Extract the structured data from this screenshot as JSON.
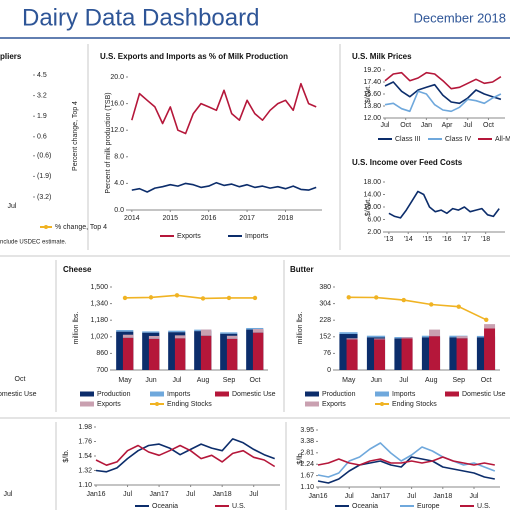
{
  "header": {
    "title": "Dairy Data Dashboard",
    "date": "December 2018"
  },
  "chart_data": [
    {
      "type": "fragment",
      "title": "pliers",
      "ylabel": "Percent change, Top 4",
      "ylim": [
        -3.2,
        4.5
      ],
      "yticks": [
        4.5,
        3.2,
        1.9,
        0.6,
        {
          "value": -0.6,
          "label": "(0.6)"
        },
        {
          "value": -1.9,
          "label": "(1.9)"
        },
        {
          "value": -3.2,
          "label": "(3.2)"
        }
      ],
      "xlabels": [
        "Jul"
      ],
      "legend": "% change, Top 4",
      "note": "nclude USDEC estimate."
    },
    {
      "type": "line",
      "title": "U.S. Exports and Imports as % of Milk Production",
      "ylabel": "Percent of milk production (TSB)",
      "x": [
        2014.0,
        2014.2,
        2014.4,
        2014.6,
        2014.8,
        2015.0,
        2015.2,
        2015.4,
        2015.6,
        2015.8,
        2016.0,
        2016.2,
        2016.4,
        2016.6,
        2016.8,
        2017.0,
        2017.2,
        2017.4,
        2017.6,
        2017.8,
        2018.0,
        2018.2,
        2018.4,
        2018.6,
        2018.8
      ],
      "xlim": [
        2013.9,
        2018.95
      ],
      "xticks": [
        2014,
        2015,
        2016,
        2017,
        2018
      ],
      "ylim": [
        0,
        20
      ],
      "yticks": [
        {
          "value": 0,
          "label": "0.0"
        },
        {
          "value": 4,
          "label": "4.0"
        },
        {
          "value": 8,
          "label": "8.0"
        },
        {
          "value": 12,
          "label": "12.0"
        },
        {
          "value": 16,
          "label": "16.0"
        },
        {
          "value": 20,
          "label": "20.0"
        }
      ],
      "series": [
        {
          "name": "Exports",
          "color": "#b5173a",
          "values": [
            13.5,
            17.5,
            16.5,
            15.5,
            13,
            15.5,
            12,
            11.5,
            14.5,
            16,
            15.5,
            15,
            18,
            14.5,
            13.5,
            16.5,
            14.5,
            13.5,
            15,
            16,
            16.5,
            15,
            19,
            16,
            15.5
          ]
        },
        {
          "name": "Imports",
          "color": "#0c2d6b",
          "values": [
            3,
            3.2,
            2.7,
            3.3,
            3.5,
            3.8,
            3.6,
            4,
            3.8,
            3.4,
            3.6,
            4.1,
            3.7,
            3.9,
            3.5,
            3.8,
            3.4,
            3.6,
            3.3,
            3.5,
            3.2,
            3.6,
            3.1,
            3.0,
            3.4
          ]
        }
      ]
    },
    {
      "type": "line",
      "title": "U.S. Milk Prices",
      "ylabel": "$/cwt.",
      "x": [
        0,
        2,
        4,
        6,
        8,
        10,
        12,
        14,
        16,
        18,
        20,
        22,
        24,
        26,
        28
      ],
      "xlim": [
        0,
        29
      ],
      "xticks": [
        {
          "value": 0,
          "label": "Jul"
        },
        {
          "value": 5,
          "label": "Oct"
        },
        {
          "value": 10,
          "label": "Jan"
        },
        {
          "value": 15,
          "label": "Apr"
        },
        {
          "value": 20,
          "label": "Jul"
        },
        {
          "value": 25,
          "label": "Oct"
        }
      ],
      "ylim": [
        12,
        19.2
      ],
      "yticks": [
        {
          "value": 12,
          "label": "12.00"
        },
        {
          "value": 13.8,
          "label": "13.80"
        },
        {
          "value": 15.6,
          "label": "15.60"
        },
        {
          "value": 17.4,
          "label": "17.40"
        },
        {
          "value": 19.2,
          "label": "19.20"
        }
      ],
      "series": [
        {
          "name": "Class III",
          "color": "#0c2d6b",
          "values": [
            16.8,
            17.4,
            16.0,
            15.2,
            16.2,
            16.6,
            17.0,
            15.4,
            14.4,
            14.2,
            15.0,
            16.2,
            15.6,
            15.2,
            14.8
          ]
        },
        {
          "name": "Class IV",
          "color": "#6fa8dc",
          "values": [
            14.0,
            14.2,
            13.4,
            13.0,
            16.0,
            15.6,
            14.0,
            13.2,
            13.0,
            13.6,
            14.8,
            14.6,
            14.2,
            15.0,
            15.6
          ]
        },
        {
          "name": "All-Milk",
          "color": "#b5173a",
          "values": [
            17.6,
            18.6,
            18.8,
            17.6,
            18.0,
            18.8,
            18.6,
            17.6,
            16.4,
            16.6,
            17.2,
            17.8,
            17.2,
            17.4,
            18.2
          ]
        }
      ]
    },
    {
      "type": "line",
      "title": "U.S. Income over Feed Costs",
      "ylabel": "$/cwt.",
      "x": [
        2013.0,
        2013.3,
        2013.6,
        2013.9,
        2014.2,
        2014.5,
        2014.8,
        2015.1,
        2015.4,
        2015.7,
        2016.0,
        2016.3,
        2016.6,
        2016.9,
        2017.2,
        2017.5,
        2017.8,
        2018.1,
        2018.4,
        2018.7
      ],
      "xlim": [
        2012.8,
        2019.0
      ],
      "xticks": [
        {
          "value": 2013,
          "label": "'13"
        },
        {
          "value": 2014,
          "label": "'14"
        },
        {
          "value": 2015,
          "label": "'15"
        },
        {
          "value": 2016,
          "label": "'16"
        },
        {
          "value": 2017,
          "label": "'17"
        },
        {
          "value": 2018,
          "label": "'18"
        }
      ],
      "ylim": [
        2,
        18
      ],
      "yticks": [
        {
          "value": 2,
          "label": "2.00"
        },
        {
          "value": 6,
          "label": "6.00"
        },
        {
          "value": 10,
          "label": "10.00"
        },
        {
          "value": 14,
          "label": "14.00"
        },
        {
          "value": 18,
          "label": "18.00"
        }
      ],
      "series": [
        {
          "color": "#0c2d6b",
          "values": [
            8,
            7,
            6.5,
            9,
            12,
            15,
            14,
            10,
            8.5,
            9,
            8,
            9.5,
            9,
            10,
            8.5,
            9,
            9.5,
            7.5,
            7,
            9.5
          ]
        }
      ]
    },
    {
      "type": "fragment",
      "xlabels": [
        "Oct"
      ],
      "legend": "omestic Use"
    },
    {
      "type": "bar",
      "title": "Cheese",
      "ylabel": "million lbs.",
      "categories": [
        "May",
        "Jun",
        "Jul",
        "Aug",
        "Sep",
        "Oct"
      ],
      "ylim": [
        700,
        1500
      ],
      "yticks": [
        700,
        860,
        {
          "value": 1020,
          "label": "1,020"
        },
        {
          "value": 1180,
          "label": "1,180"
        },
        {
          "value": 1340,
          "label": "1,340"
        },
        {
          "value": 1500,
          "label": "1,500"
        }
      ],
      "series": [
        {
          "name": "Production",
          "color": "#0c2d6b",
          "values": [
            1070,
            1060,
            1065,
            1075,
            1050,
            1090
          ]
        },
        {
          "name": "Imports",
          "color": "#6fa8dc",
          "values": [
            15,
            12,
            14,
            14,
            13,
            15
          ]
        },
        {
          "name": "Domestic Use",
          "color": "#b5173a",
          "values": [
            1010,
            1000,
            1005,
            1030,
            1000,
            1060
          ]
        },
        {
          "name": "Exports",
          "color": "#c9a0b0",
          "values": [
            30,
            28,
            29,
            60,
            30,
            35
          ]
        },
        {
          "name": "Ending Stocks",
          "color": "#f0b323",
          "type": "line",
          "values": [
            1395,
            1400,
            1420,
            1390,
            1395,
            1395
          ]
        }
      ]
    },
    {
      "type": "bar",
      "title": "Butter",
      "ylabel": "million lbs.",
      "categories": [
        "May",
        "Jun",
        "Jul",
        "Aug",
        "Sep",
        "Oct"
      ],
      "ylim": [
        0,
        380
      ],
      "yticks": [
        0,
        76,
        152,
        228,
        304,
        380
      ],
      "series": [
        {
          "name": "Production",
          "color": "#0c2d6b",
          "values": [
            165,
            150,
            145,
            150,
            150,
            150
          ]
        },
        {
          "name": "Imports",
          "color": "#6fa8dc",
          "values": [
            8,
            7,
            6,
            7,
            7,
            6
          ]
        },
        {
          "name": "Domestic Use",
          "color": "#b5173a",
          "values": [
            140,
            140,
            145,
            155,
            145,
            190
          ]
        },
        {
          "name": "Exports",
          "color": "#c9a0b0",
          "values": [
            5,
            4,
            5,
            30,
            10,
            20
          ]
        },
        {
          "name": "Ending Stocks",
          "color": "#f0b323",
          "type": "line",
          "values": [
            333,
            332,
            320,
            300,
            290,
            230
          ]
        }
      ]
    },
    {
      "type": "fragment",
      "xlabels": [
        "Jul"
      ]
    },
    {
      "type": "line",
      "ylabel": "$/lb.",
      "x": [
        0,
        2,
        4,
        6,
        8,
        10,
        12,
        14,
        16,
        18,
        20,
        22,
        24,
        26,
        28,
        30,
        32,
        34
      ],
      "xlim": [
        0,
        35
      ],
      "xticks": [
        {
          "value": 0,
          "label": "Jan16"
        },
        {
          "value": 6,
          "label": "Jul"
        },
        {
          "value": 12,
          "label": "Jan17"
        },
        {
          "value": 18,
          "label": "Jul"
        },
        {
          "value": 24,
          "label": "Jan18"
        },
        {
          "value": 30,
          "label": "Jul"
        }
      ],
      "ylim": [
        1.1,
        1.98
      ],
      "yticks": [
        {
          "value": 1.1,
          "label": "1.10"
        },
        1.32,
        1.54,
        1.76,
        1.98
      ],
      "series": [
        {
          "name": "Oceania",
          "color": "#0c2d6b",
          "values": [
            1.32,
            1.3,
            1.36,
            1.5,
            1.62,
            1.7,
            1.72,
            1.66,
            1.56,
            1.64,
            1.72,
            1.66,
            1.62,
            1.8,
            1.74,
            1.64,
            1.56,
            1.5
          ]
        },
        {
          "name": "U.S.",
          "color": "#b5173a",
          "values": [
            1.48,
            1.4,
            1.45,
            1.62,
            1.7,
            1.6,
            1.55,
            1.62,
            1.7,
            1.62,
            1.5,
            1.55,
            1.45,
            1.58,
            1.62,
            1.52,
            1.48,
            1.38
          ]
        }
      ]
    },
    {
      "type": "line",
      "ylabel": "$/lb.",
      "x": [
        0,
        2,
        4,
        6,
        8,
        10,
        12,
        14,
        16,
        18,
        20,
        22,
        24,
        26,
        28,
        30,
        32,
        34
      ],
      "xlim": [
        0,
        35
      ],
      "xticks": [
        {
          "value": 0,
          "label": "Jan16"
        },
        {
          "value": 6,
          "label": "Jul"
        },
        {
          "value": 12,
          "label": "Jan17"
        },
        {
          "value": 18,
          "label": "Jul"
        },
        {
          "value": 24,
          "label": "Jan18"
        },
        {
          "value": 30,
          "label": "Jul"
        }
      ],
      "ylim": [
        1.1,
        3.95
      ],
      "yticks": [
        {
          "value": 1.1,
          "label": "1.10"
        },
        1.67,
        2.24,
        2.81,
        3.38,
        3.95
      ],
      "series": [
        {
          "name": "Oceania",
          "color": "#0c2d6b",
          "values": [
            1.4,
            1.3,
            1.5,
            1.9,
            2.2,
            2.3,
            2.4,
            2.2,
            2.1,
            2.6,
            2.5,
            2.4,
            2.1,
            2.0,
            1.9,
            1.8,
            1.6,
            1.5
          ]
        },
        {
          "name": "Europe",
          "color": "#6fa8dc",
          "values": [
            1.7,
            1.6,
            1.8,
            2.4,
            2.6,
            3.0,
            3.3,
            2.8,
            2.4,
            2.7,
            3.1,
            2.9,
            2.6,
            2.4,
            2.2,
            2.3,
            2.1,
            1.9
          ]
        },
        {
          "name": "U.S.",
          "color": "#b5173a",
          "values": [
            2.2,
            2.3,
            2.5,
            2.3,
            2.2,
            2.4,
            2.5,
            2.3,
            2.3,
            2.4,
            2.3,
            2.4,
            2.6,
            2.4,
            2.3,
            2.2,
            2.3,
            2.2
          ]
        }
      ]
    }
  ]
}
